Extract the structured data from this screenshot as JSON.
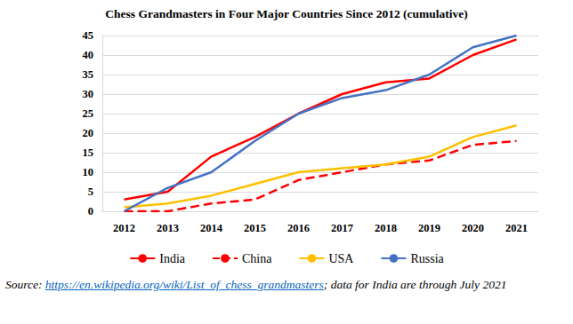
{
  "chart_data": {
    "type": "line",
    "title": "Chess Grandmasters in Four Major Countries Since 2012 (cumulative)",
    "categories": [
      "2012",
      "2013",
      "2014",
      "2015",
      "2016",
      "2017",
      "2018",
      "2019",
      "2020",
      "2021"
    ],
    "series": [
      {
        "name": "India",
        "color": "#ff0000",
        "line_style": "solid",
        "values": [
          3,
          5,
          14,
          19,
          25,
          30,
          33,
          34,
          40,
          44
        ]
      },
      {
        "name": "China",
        "color": "#ff0000",
        "line_style": "dashed",
        "values": [
          0,
          0,
          2,
          3,
          8,
          10,
          12,
          13,
          17,
          18
        ]
      },
      {
        "name": "USA",
        "color": "#ffc000",
        "line_style": "solid",
        "values": [
          1,
          2,
          4,
          7,
          10,
          11,
          12,
          14,
          19,
          22
        ]
      },
      {
        "name": "Russia",
        "color": "#4472c4",
        "line_style": "solid",
        "values": [
          0,
          6,
          10,
          18,
          25,
          29,
          31,
          35,
          42,
          45
        ]
      }
    ],
    "ylim": [
      0,
      45
    ],
    "yticks": [
      0,
      5,
      10,
      15,
      20,
      25,
      30,
      35,
      40,
      45
    ],
    "grid": true,
    "legend": "bottom",
    "source": [
      "Source: ",
      "https://en.wikipedia.org/wiki/List_of_chess_grandmasters",
      "; data for India are through July 2021"
    ]
  }
}
